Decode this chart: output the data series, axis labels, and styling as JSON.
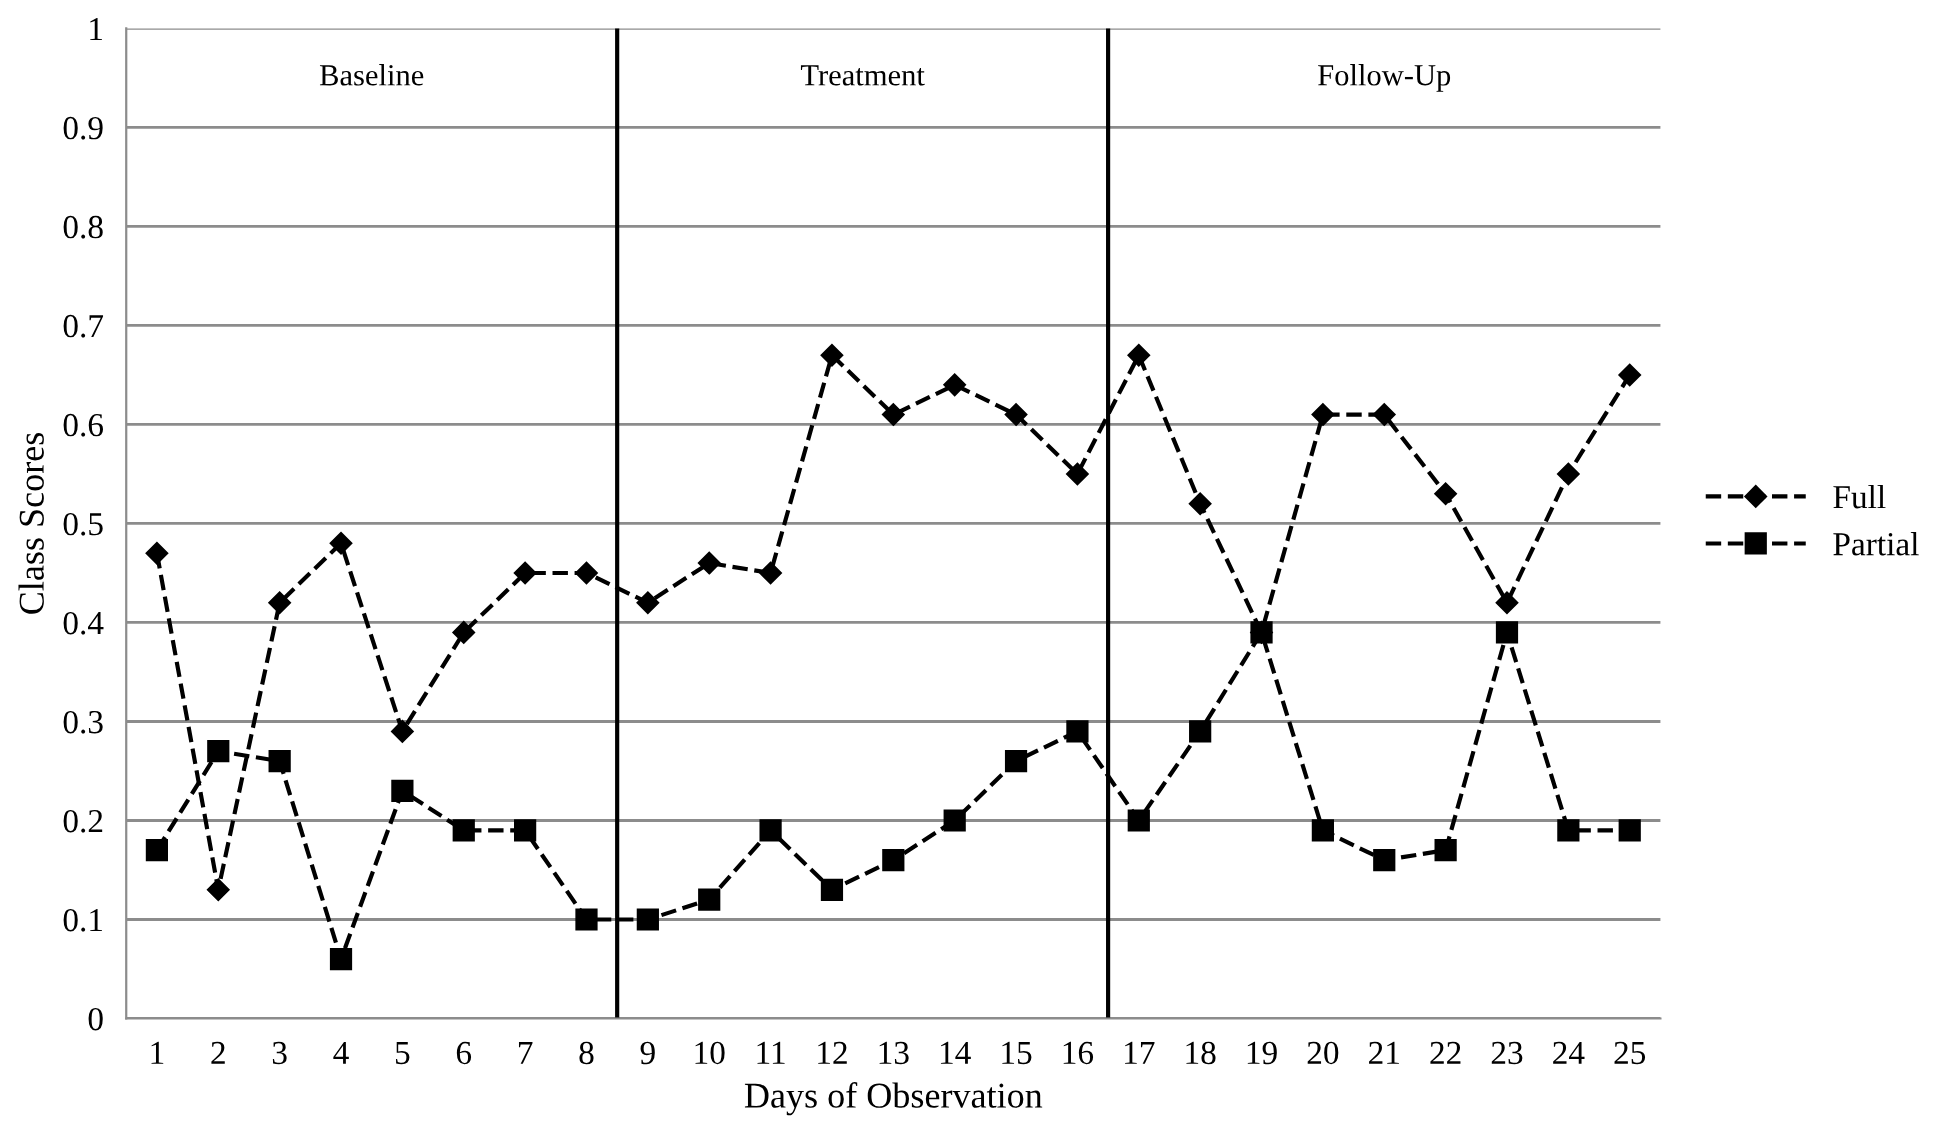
{
  "chart_data": {
    "type": "line",
    "xlabel": "Days of Observation",
    "ylabel": "Class Scores",
    "x": [
      1,
      2,
      3,
      4,
      5,
      6,
      7,
      8,
      9,
      10,
      11,
      12,
      13,
      14,
      15,
      16,
      17,
      18,
      19,
      20,
      21,
      22,
      23,
      24,
      25
    ],
    "xlim": [
      0.5,
      25.5
    ],
    "xticks": [
      1,
      2,
      3,
      4,
      5,
      6,
      7,
      8,
      9,
      10,
      11,
      12,
      13,
      14,
      15,
      16,
      17,
      18,
      19,
      20,
      21,
      22,
      23,
      24,
      25
    ],
    "ylim": [
      0,
      1
    ],
    "yticks": [
      0,
      0.1,
      0.2,
      0.3,
      0.4,
      0.5,
      0.6,
      0.7,
      0.8,
      0.9,
      1
    ],
    "grid": "y",
    "legend": "right",
    "line_style": "dashed",
    "series": [
      {
        "name": "Full",
        "color": "#000000",
        "marker": "diamond",
        "values": [
          0.47,
          0.13,
          0.42,
          0.48,
          0.29,
          0.39,
          0.45,
          0.45,
          0.42,
          0.46,
          0.45,
          0.67,
          0.61,
          0.64,
          0.61,
          0.55,
          0.67,
          0.52,
          0.39,
          0.61,
          0.61,
          0.53,
          0.42,
          0.55,
          0.65
        ]
      },
      {
        "name": "Partial",
        "color": "#000000",
        "marker": "square",
        "values": [
          0.17,
          0.27,
          0.26,
          0.06,
          0.23,
          0.19,
          0.19,
          0.1,
          0.1,
          0.12,
          0.19,
          0.13,
          0.16,
          0.2,
          0.26,
          0.29,
          0.2,
          0.29,
          0.39,
          0.19,
          0.16,
          0.17,
          0.39,
          0.19,
          0.19
        ]
      }
    ],
    "ref_lines": [
      {
        "axis": "x",
        "value": 8.5,
        "color": "#000000"
      },
      {
        "axis": "x",
        "value": 16.5,
        "color": "#000000"
      }
    ],
    "annotations": [
      "Baseline",
      "Treatment",
      "Follow-Up"
    ]
  }
}
